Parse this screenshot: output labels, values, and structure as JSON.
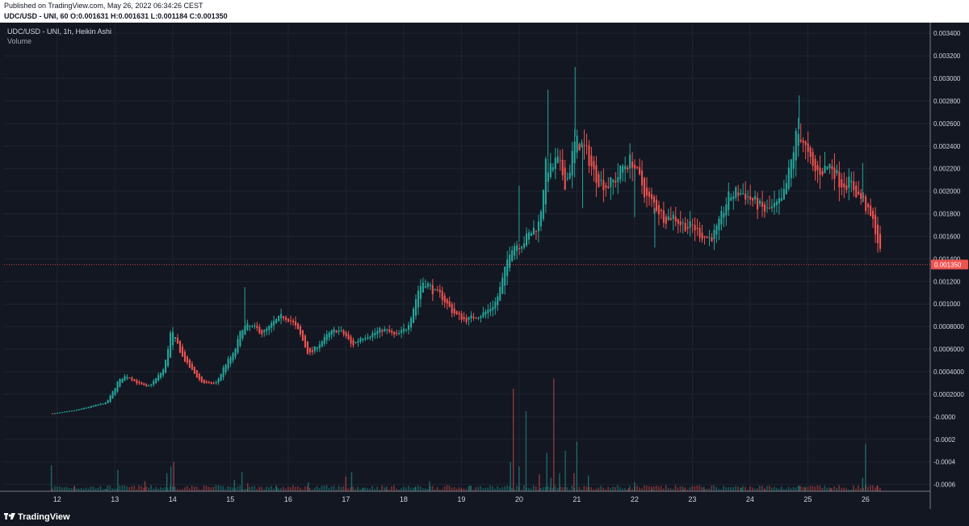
{
  "header": {
    "publish_line": "Published on TradingView.com, May 26, 2022 06:34:26 CEST",
    "ohlc_line": "UDC/USD - UNI, 60 O:0.001631 H:0.001631 L:0.001184 C:0.001350"
  },
  "legend": {
    "title": "UDC/USD - UNI, 1h, Heikin Ashi",
    "volume": "Volume"
  },
  "footer": {
    "brand": "TradingView"
  },
  "colors": {
    "background": "#131722",
    "grid": "#1f2430",
    "up": "#26a69a",
    "down": "#ef5350",
    "price_line": "#ef5350",
    "axis_text": "#d1d4dc"
  },
  "chart_data": {
    "type": "candlestick",
    "style": "Heikin Ashi",
    "symbol": "UDC/USD - UNI",
    "interval": "1h",
    "last_price": 0.00135,
    "last_price_label": "0.001350",
    "y_ticks": [
      "0.003400",
      "0.003200",
      "0.003000",
      "0.002800",
      "0.002600",
      "0.002400",
      "0.002200",
      "0.002000",
      "0.001800",
      "0.001600",
      "0.001400",
      "0.001200",
      "0.001000",
      "0.0008000",
      "0.0006000",
      "0.0004000",
      "0.0002000",
      "-0.0000",
      "-0.0002",
      "-0.0004",
      "-0.0006"
    ],
    "y_tick_values": [
      0.0034,
      0.0032,
      0.003,
      0.0028,
      0.0026,
      0.0024,
      0.0022,
      0.002,
      0.0018,
      0.0016,
      0.0014,
      0.0012,
      0.001,
      0.0008,
      0.0006,
      0.0004,
      0.0002,
      0,
      -0.0002,
      -0.0004,
      -0.0006
    ],
    "ylim": [
      -0.00066,
      0.00348
    ],
    "x_ticks": [
      "12",
      "13",
      "14",
      "15",
      "16",
      "17",
      "18",
      "19",
      "20",
      "21",
      "22",
      "23",
      "24",
      "25",
      "26"
    ],
    "x_tick_values": [
      12,
      13,
      14,
      15,
      16,
      17,
      18,
      19,
      20,
      21,
      22,
      23,
      24,
      25,
      26
    ],
    "xlim": [
      11.08,
      27.12
    ],
    "series_end": 26.26,
    "price_path": [
      [
        11.92,
        3e-05
      ],
      [
        12.3,
        6e-05
      ],
      [
        12.6,
        0.0001
      ],
      [
        12.85,
        0.00013
      ],
      [
        13.05,
        0.00035
      ],
      [
        13.2,
        0.00038
      ],
      [
        13.35,
        0.0003
      ],
      [
        13.55,
        0.00025
      ],
      [
        13.7,
        0.00035
      ],
      [
        13.85,
        0.00045
      ],
      [
        13.97,
        0.00087
      ],
      [
        14.05,
        0.00067
      ],
      [
        14.15,
        0.0005
      ],
      [
        14.3,
        0.0004
      ],
      [
        14.5,
        0.00028
      ],
      [
        14.75,
        0.0003
      ],
      [
        14.9,
        0.0005
      ],
      [
        15.05,
        0.00058
      ],
      [
        15.2,
        0.00085
      ],
      [
        15.35,
        0.0008
      ],
      [
        15.55,
        0.00073
      ],
      [
        15.75,
        0.00085
      ],
      [
        15.9,
        0.0009
      ],
      [
        16.05,
        0.00085
      ],
      [
        16.2,
        0.0007
      ],
      [
        16.35,
        0.0005
      ],
      [
        16.5,
        0.00065
      ],
      [
        16.7,
        0.00075
      ],
      [
        16.85,
        0.00078
      ],
      [
        17.0,
        0.0007
      ],
      [
        17.1,
        0.0006
      ],
      [
        17.25,
        0.00072
      ],
      [
        17.45,
        0.00075
      ],
      [
        17.65,
        0.00078
      ],
      [
        17.85,
        0.0007
      ],
      [
        18.05,
        0.0008
      ],
      [
        18.25,
        0.0012
      ],
      [
        18.35,
        0.00125
      ],
      [
        18.5,
        0.0011
      ],
      [
        18.65,
        0.00105
      ],
      [
        18.85,
        0.0009
      ],
      [
        19.05,
        0.00085
      ],
      [
        19.25,
        0.0009
      ],
      [
        19.45,
        0.00095
      ],
      [
        19.6,
        0.00105
      ],
      [
        19.75,
        0.00135
      ],
      [
        19.85,
        0.0016
      ],
      [
        20.0,
        0.00155
      ],
      [
        20.2,
        0.00165
      ],
      [
        20.35,
        0.00175
      ],
      [
        20.45,
        0.0024
      ],
      [
        20.55,
        0.0022
      ],
      [
        20.65,
        0.0023
      ],
      [
        20.8,
        0.002
      ],
      [
        20.95,
        0.0025
      ],
      [
        21.1,
        0.0024
      ],
      [
        21.3,
        0.0021
      ],
      [
        21.5,
        0.00205
      ],
      [
        21.65,
        0.0021
      ],
      [
        21.8,
        0.00225
      ],
      [
        21.95,
        0.0023
      ],
      [
        22.05,
        0.0021
      ],
      [
        22.2,
        0.0019
      ],
      [
        22.35,
        0.00185
      ],
      [
        22.5,
        0.00175
      ],
      [
        22.65,
        0.0018
      ],
      [
        22.8,
        0.0017
      ],
      [
        23.0,
        0.00168
      ],
      [
        23.15,
        0.0016
      ],
      [
        23.3,
        0.00158
      ],
      [
        23.45,
        0.0017
      ],
      [
        23.6,
        0.00198
      ],
      [
        23.75,
        0.002
      ],
      [
        23.9,
        0.00198
      ],
      [
        24.05,
        0.0019
      ],
      [
        24.25,
        0.0018
      ],
      [
        24.4,
        0.00185
      ],
      [
        24.55,
        0.0019
      ],
      [
        24.7,
        0.0023
      ],
      [
        24.8,
        0.0026
      ],
      [
        24.9,
        0.0025
      ],
      [
        25.0,
        0.00225
      ],
      [
        25.1,
        0.0021
      ],
      [
        25.25,
        0.0022
      ],
      [
        25.4,
        0.00225
      ],
      [
        25.55,
        0.00205
      ],
      [
        25.7,
        0.0021
      ],
      [
        25.85,
        0.00195
      ],
      [
        25.95,
        0.0019
      ],
      [
        26.05,
        0.00175
      ],
      [
        26.15,
        0.00165
      ],
      [
        26.26,
        0.00135
      ]
    ],
    "volume_spikes": [
      [
        11.9,
        -0.00043
      ],
      [
        12.3,
        -0.00061
      ],
      [
        12.85,
        -0.00064
      ],
      [
        13.05,
        -0.00047
      ],
      [
        13.52,
        -0.00057
      ],
      [
        13.9,
        -0.0005
      ],
      [
        13.97,
        -0.00044
      ],
      [
        14.02,
        -0.0004
      ],
      [
        15.07,
        -0.00056
      ],
      [
        15.2,
        -0.00049
      ],
      [
        15.3,
        -0.00059
      ],
      [
        15.8,
        -0.00062
      ],
      [
        16.35,
        -0.00058
      ],
      [
        17.0,
        -0.00053
      ],
      [
        17.1,
        -0.00049
      ],
      [
        17.3,
        -0.00063
      ],
      [
        17.7,
        -0.00064
      ],
      [
        18.2,
        -0.00062
      ],
      [
        18.45,
        -0.00057
      ],
      [
        19.0,
        -0.00063
      ],
      [
        19.15,
        -0.00061
      ],
      [
        19.85,
        -0.0004
      ],
      [
        19.9,
        0.00025
      ],
      [
        20.0,
        -0.00044
      ],
      [
        20.12,
        5e-05
      ],
      [
        20.35,
        -0.00051
      ],
      [
        20.48,
        -0.00032
      ],
      [
        20.55,
        -0.00054
      ],
      [
        20.6,
        0.00034
      ],
      [
        20.7,
        -0.0005
      ],
      [
        20.8,
        -0.0003
      ],
      [
        20.95,
        -0.0005
      ],
      [
        21.0,
        -0.00022
      ],
      [
        21.2,
        -0.00052
      ],
      [
        21.9,
        -0.00063
      ],
      [
        22.0,
        -0.00058
      ],
      [
        22.3,
        -0.00064
      ],
      [
        22.85,
        -0.00064
      ],
      [
        23.2,
        -0.00062
      ],
      [
        23.85,
        -0.00063
      ],
      [
        24.25,
        -0.00064
      ],
      [
        24.85,
        -0.00061
      ],
      [
        24.95,
        -0.00062
      ],
      [
        25.4,
        -0.00063
      ],
      [
        25.95,
        -0.00054
      ],
      [
        26.0,
        -0.00024
      ],
      [
        26.2,
        -0.00061
      ]
    ],
    "wick_spikes": [
      [
        15.25,
        0.00115
      ],
      [
        20.0,
        0.00205
      ],
      [
        20.5,
        0.0029
      ],
      [
        20.97,
        0.0031
      ],
      [
        21.1,
        0.00185
      ],
      [
        22.0,
        0.00177
      ],
      [
        22.35,
        0.0015
      ],
      [
        24.85,
        0.00285
      ],
      [
        25.95,
        0.00225
      ]
    ]
  }
}
